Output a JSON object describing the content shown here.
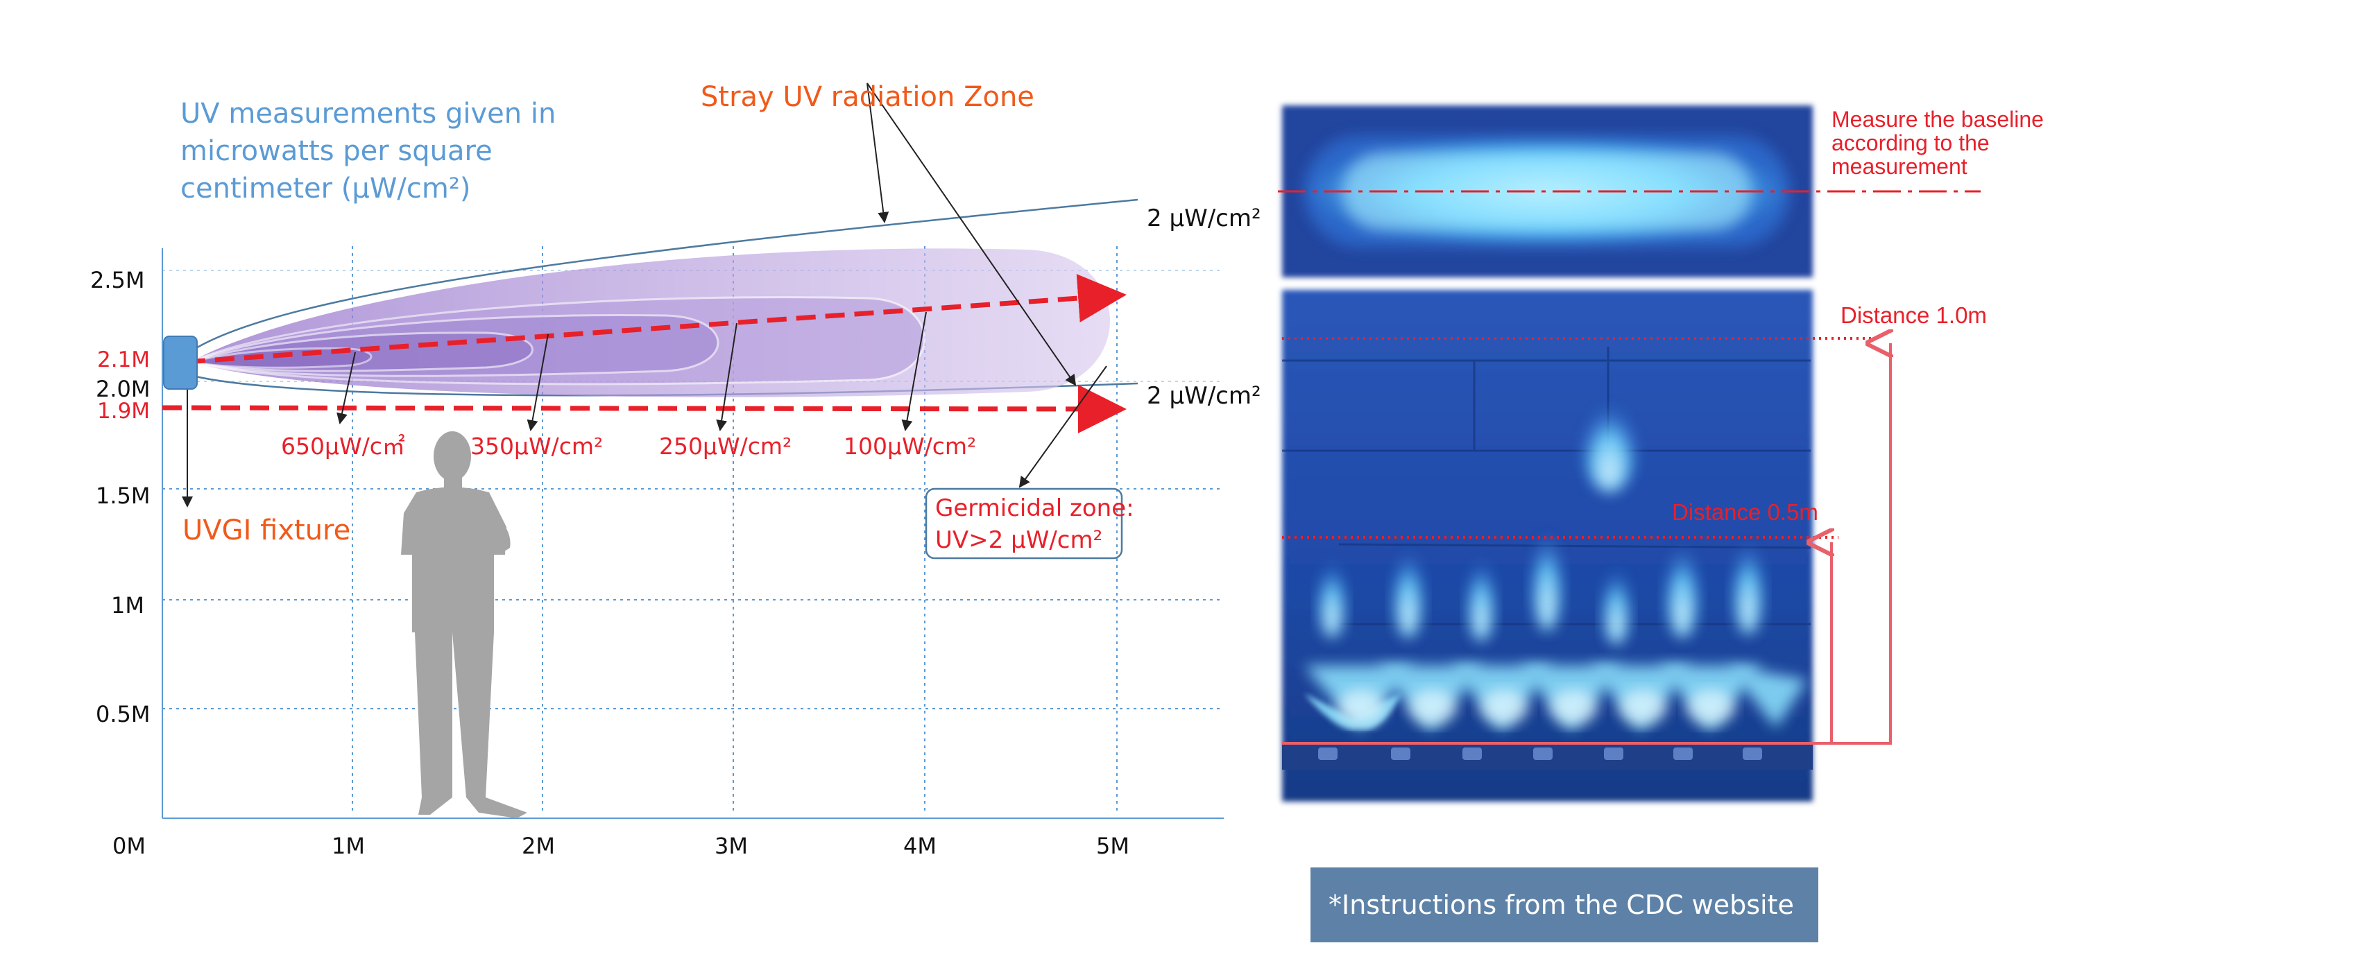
{
  "left_diagram": {
    "title_lines": [
      "UV measurements given in",
      "microwatts per square",
      "centimeter (µW/cm²)"
    ],
    "stray_label": "Stray UV radiation Zone",
    "fixture_label": "UVGI fixture",
    "germicidal_label_lines": [
      "Germicidal zone:",
      "UV>2  µW/cm²"
    ],
    "upper_boundary_label": "2 µW/cm²",
    "lower_boundary_label": "2 µW/cm²",
    "x_ticks": [
      "0M",
      "1M",
      "2M",
      "3M",
      "4M",
      "5M"
    ],
    "y_ticks": [
      "2.5M",
      "2.0M",
      "1.5M",
      "1M",
      "0.5M"
    ],
    "highlight_ticks": [
      "2.1M",
      "1.9M"
    ],
    "intensity_labels": [
      "650µW/c㎡",
      "350µW/cm²",
      "250µW/cm²",
      "100µW/cm²"
    ],
    "colors": {
      "measurement_line": "#e8202a",
      "fixture": "#5b9bd5",
      "grid": "#5b9bd5",
      "beam": "#9b7fce",
      "person": "#a5a5a5"
    }
  },
  "right_photo": {
    "baseline_note_lines": [
      "Measure the baseline",
      "according to the",
      "measurement"
    ],
    "distance_top": "Distance 1.0m",
    "distance_mid": "Distance 0.5m",
    "colors": {
      "glow": "#4aa8ff",
      "background": "#1d3d8c"
    }
  },
  "footer": {
    "asterisk": "*",
    "text": "Instructions from the CDC website"
  }
}
